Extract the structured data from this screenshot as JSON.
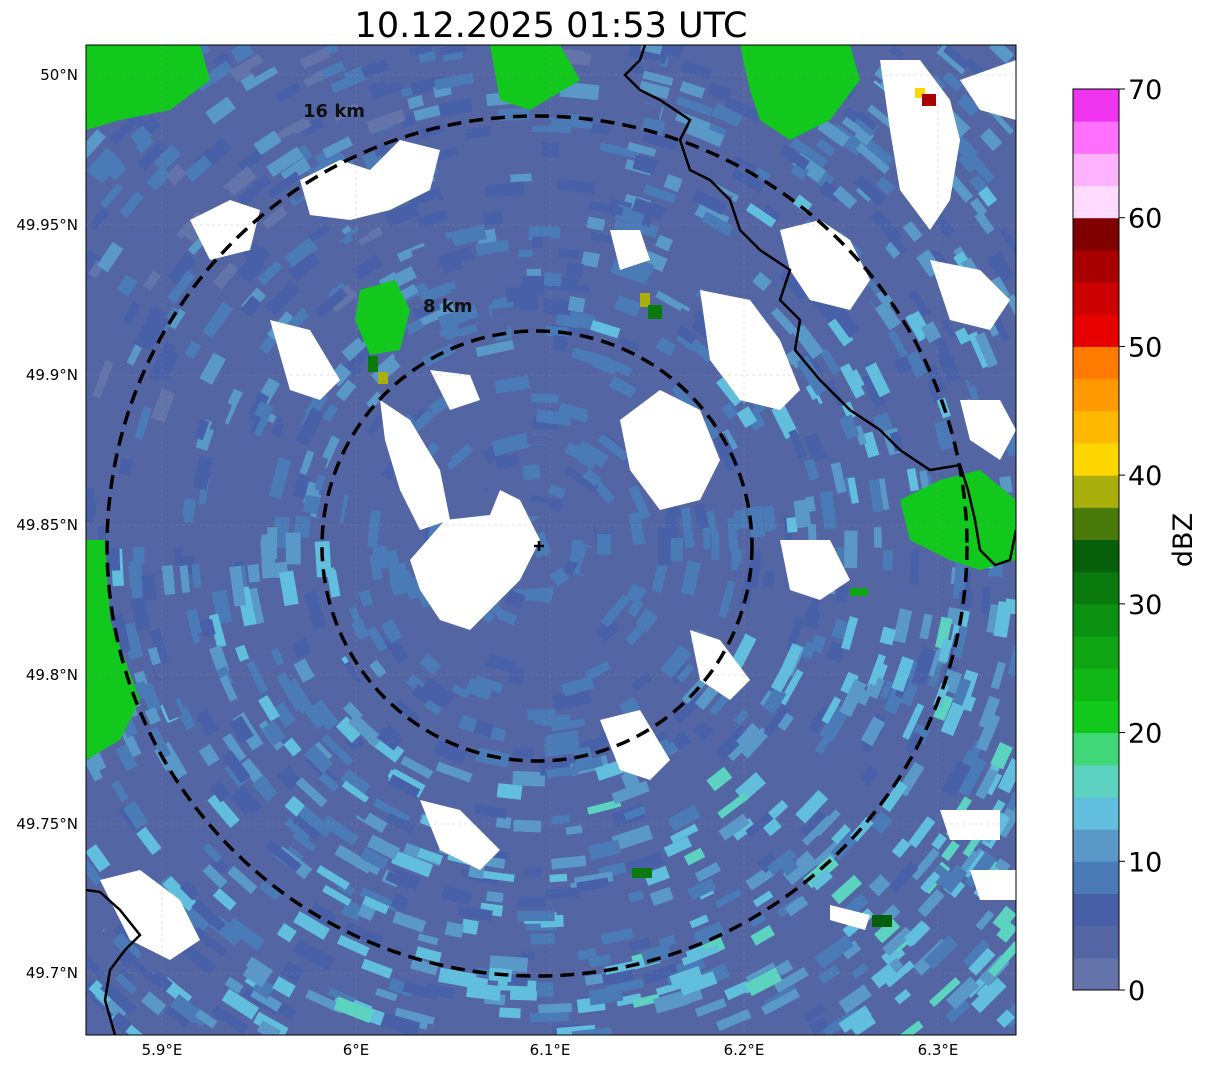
{
  "title": "10.12.2025 01:53 UTC",
  "colorbar": {
    "label": "dBZ",
    "ticks": [
      "0",
      "10",
      "20",
      "30",
      "40",
      "50",
      "60",
      "70"
    ],
    "bins": [
      "#6473a9",
      "#5465a4",
      "#4760a8",
      "#4b7bb7",
      "#5a98c8",
      "#61bedd",
      "#5cd3c1",
      "#3fd777",
      "#12c81c",
      "#10b616",
      "#0fa414",
      "#0c9112",
      "#0a7a0f",
      "#075e0b",
      "#4a7a0a",
      "#a9b00e",
      "#ffd700",
      "#ffb800",
      "#ff9900",
      "#ff7a00",
      "#e60000",
      "#cc0000",
      "#a80000",
      "#800000",
      "#ffdcff",
      "#ffb3ff",
      "#ff70ff",
      "#f035f0"
    ]
  },
  "axes": {
    "x_ticks": [
      "5.9°E",
      "6°E",
      "6.1°E",
      "6.2°E",
      "6.3°E"
    ],
    "y_ticks": [
      "50°N",
      "49.95°N",
      "49.9°N",
      "49.85°N",
      "49.8°N",
      "49.75°N",
      "49.7°N"
    ]
  },
  "rings": [
    {
      "label": "8 km"
    },
    {
      "label": "16 km"
    }
  ],
  "radar_site": {
    "lon": 6.09,
    "lat": 49.843
  }
}
